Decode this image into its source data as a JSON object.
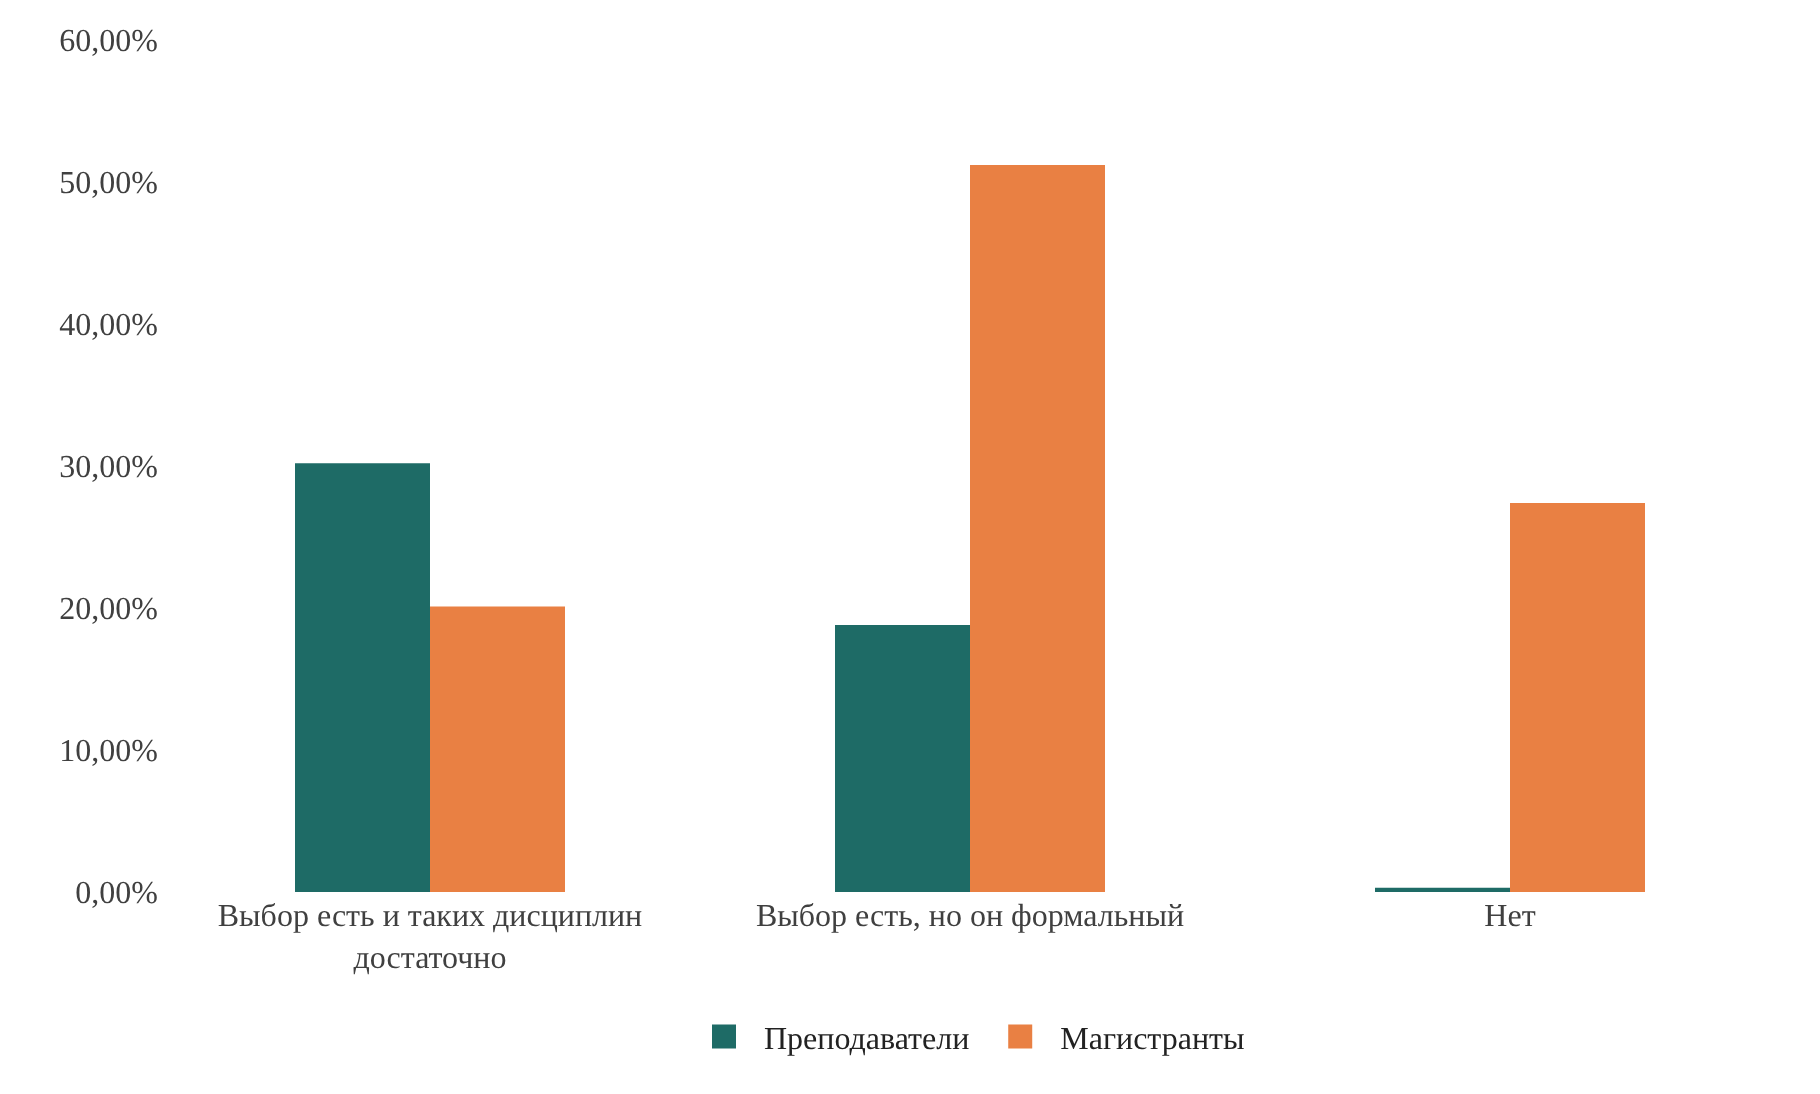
{
  "chart_data": {
    "type": "bar",
    "categories": [
      "Выбор есть и таких дисциплин достаточно",
      "Выбор есть, но он формальный",
      "Нет"
    ],
    "series": [
      {
        "name": "Преподаватели",
        "color": "#1e6b66",
        "values": [
          30.2,
          18.8,
          0.3
        ]
      },
      {
        "name": "Магистранты",
        "color": "#e98043",
        "values": [
          20.1,
          51.2,
          27.4
        ]
      }
    ],
    "ylim": [
      0,
      60
    ],
    "yticks": [
      {
        "value": 0,
        "label": "0,00%"
      },
      {
        "value": 10,
        "label": "10,00%"
      },
      {
        "value": 20,
        "label": "20,00%"
      },
      {
        "value": 30,
        "label": "30,00%"
      },
      {
        "value": 40,
        "label": "40,00%"
      },
      {
        "value": 50,
        "label": "50,00%"
      },
      {
        "value": 60,
        "label": "60,00%"
      }
    ],
    "grid": false,
    "legend": "bottom"
  }
}
